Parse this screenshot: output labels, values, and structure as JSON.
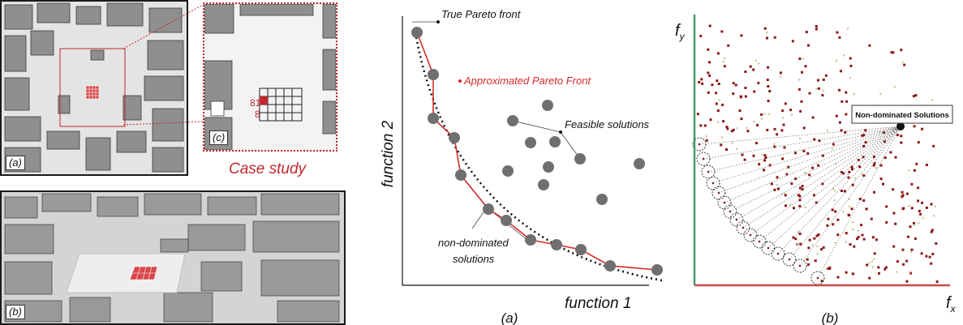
{
  "left_figure": {
    "panel_a_tag": "(a)",
    "panel_b_tag": "(b)",
    "panel_c_tag": "(c)",
    "case_study_label": "Case study",
    "cell_label_81": "81",
    "cell_label_8": "8"
  },
  "chart_a": {
    "y_axis_label": "function 2",
    "x_axis_label": "function 1",
    "caption": "(a)",
    "ann_true_front": "True Pareto front",
    "ann_approx_front": "Approximated Pareto Front",
    "ann_feasible": "Feasible solutions",
    "ann_nondom_line1": "non-dominated",
    "ann_nondom_line2": "solutions"
  },
  "chart_b": {
    "y_axis_label": "f",
    "y_axis_sub": "y",
    "x_axis_label": "f",
    "x_axis_sub": "x",
    "caption": "(b)",
    "callout": "Non-dominated Solutions"
  },
  "colors": {
    "front_red": "#d42a2a",
    "point_gray": "#6f6f6f",
    "dot_darkred": "#8b1818",
    "dot_olive": "#c7c896",
    "axis_green": "#3c9a6a",
    "axis_red": "#c24b4b"
  }
}
